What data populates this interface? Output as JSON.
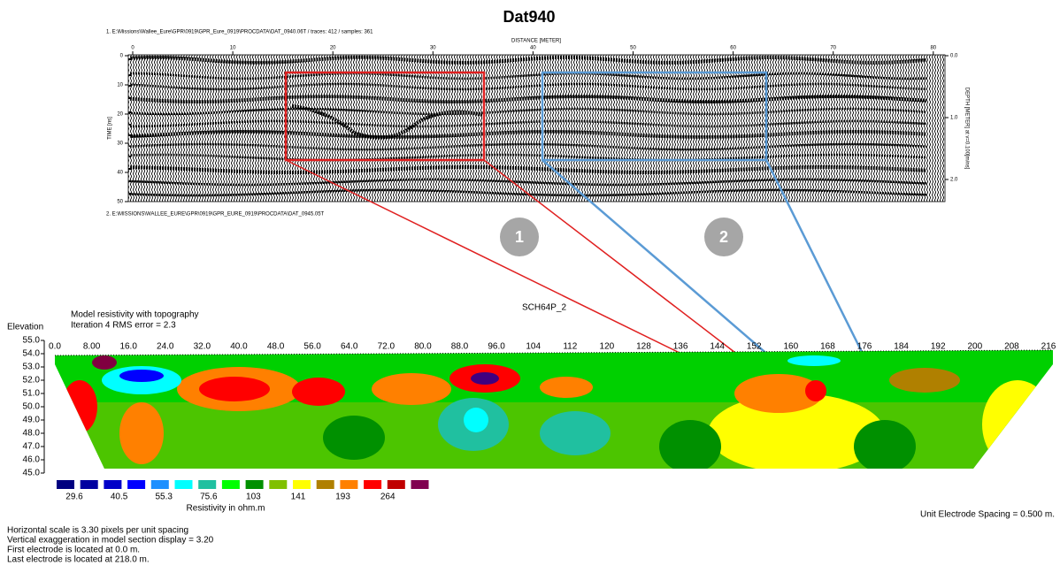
{
  "title": "Dat940",
  "gpr": {
    "file_top": "1. E:\\Missions\\Wallee_Eure\\GPR\\0919\\GPR_Eure_0919\\PROCDATA\\DAT_0940.06T / traces: 412 / samples: 361",
    "file_bottom": "2. E:\\MISSIONS\\WALLEE_EURE\\GPR\\0919\\GPR_EURE_0919\\PROCDATA\\DAT_0945.05T",
    "x_label": "DISTANCE [METER]",
    "x_ticks": [
      "0",
      "10",
      "20",
      "30",
      "40",
      "50",
      "60",
      "70",
      "80"
    ],
    "y_label": "TIME [ns]",
    "y_ticks": [
      "0",
      "10",
      "20",
      "30",
      "40",
      "50"
    ],
    "depth_label": "DEPTH [METER] at v=0.100[m/ns]",
    "depth_ticks": [
      "0.0",
      "1.0",
      "2.0"
    ]
  },
  "markers": [
    "1",
    "2"
  ],
  "section": {
    "name": "SCH64P_2",
    "title": "Model resistivity with topography",
    "iteration": "Iteration 4 RMS error = 2.3",
    "elevation_label": "Elevation",
    "elevation_ticks": [
      "55.0",
      "54.0",
      "53.0",
      "52.0",
      "51.0",
      "50.0",
      "49.0",
      "48.0",
      "47.0",
      "46.0",
      "45.0"
    ],
    "distance_ticks": [
      "0.0",
      "8.00",
      "16.0",
      "24.0",
      "32.0",
      "40.0",
      "48.0",
      "56.0",
      "64.0",
      "72.0",
      "80.0",
      "88.0",
      "96.0",
      "104",
      "112",
      "120",
      "128",
      "136",
      "144",
      "152",
      "160",
      "168",
      "176",
      "184",
      "192",
      "200",
      "208",
      "216"
    ]
  },
  "legend": {
    "labels": [
      "29.6",
      "40.5",
      "55.3",
      "75.6",
      "103",
      "141",
      "193",
      "264"
    ],
    "title": "Resistivity in ohm.m"
  },
  "unit_spacing": "Unit Electrode Spacing = 0.500 m.",
  "notes": [
    "Horizontal scale is 3.30 pixels per unit spacing",
    "Vertical exaggeration in model section display = 3.20",
    "First electrode is located at  0.0  m.",
    "Last electrode is located at 218.0 m."
  ]
}
